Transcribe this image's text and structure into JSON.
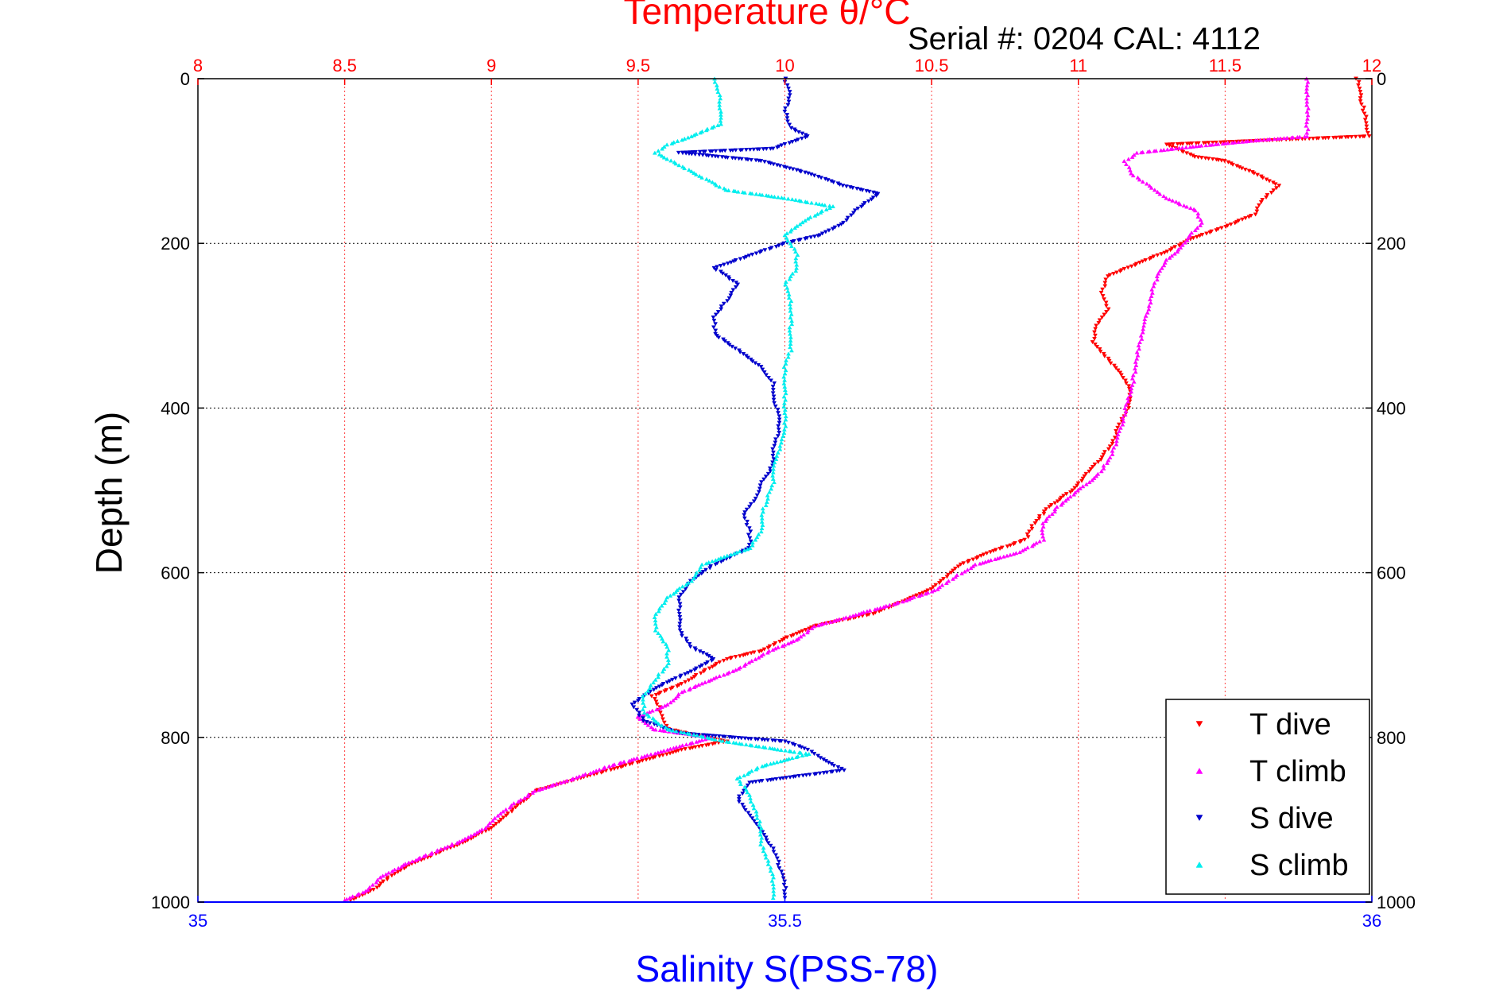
{
  "chart_data": {
    "type": "scatter",
    "title": "Temperature θ/°C",
    "subtitle": "Serial #: 0204  CAL: 4112",
    "xlabel_top": "Temperature θ/°C",
    "xlabel_bottom": "Salinity S(PSS-78)",
    "ylabel": "Depth (m)",
    "temperature_axis": {
      "range": [
        8,
        12
      ],
      "ticks": [
        "8",
        "8.5",
        "9",
        "9.5",
        "10",
        "10.5",
        "11",
        "11.5",
        "12"
      ],
      "color": "#ff0000"
    },
    "salinity_axis": {
      "range": [
        35,
        36
      ],
      "ticks": [
        "35",
        "35.5",
        "36"
      ],
      "color": "#0000ff"
    },
    "depth_axis": {
      "range": [
        0,
        1000
      ],
      "reversed": true,
      "ticks": [
        "0",
        "200",
        "400",
        "600",
        "800",
        "1000"
      ]
    },
    "grid": true,
    "legend_position": "bottom-right",
    "series": [
      {
        "name": "T dive",
        "axis": "temperature",
        "color": "#ff0000",
        "marker": "triangle-down",
        "points": [
          [
            11.95,
            0
          ],
          [
            11.96,
            20
          ],
          [
            11.98,
            50
          ],
          [
            11.99,
            70
          ],
          [
            11.3,
            80
          ],
          [
            11.4,
            95
          ],
          [
            11.5,
            100
          ],
          [
            11.6,
            115
          ],
          [
            11.68,
            130
          ],
          [
            11.62,
            150
          ],
          [
            11.6,
            165
          ],
          [
            11.5,
            180
          ],
          [
            11.38,
            195
          ],
          [
            11.3,
            210
          ],
          [
            11.2,
            225
          ],
          [
            11.1,
            240
          ],
          [
            11.08,
            260
          ],
          [
            11.1,
            280
          ],
          [
            11.06,
            300
          ],
          [
            11.05,
            320
          ],
          [
            11.1,
            340
          ],
          [
            11.15,
            360
          ],
          [
            11.18,
            380
          ],
          [
            11.17,
            400
          ],
          [
            11.14,
            420
          ],
          [
            11.12,
            440
          ],
          [
            11.08,
            460
          ],
          [
            11.03,
            480
          ],
          [
            10.98,
            500
          ],
          [
            10.9,
            520
          ],
          [
            10.85,
            540
          ],
          [
            10.82,
            560
          ],
          [
            10.7,
            575
          ],
          [
            10.6,
            590
          ],
          [
            10.55,
            605
          ],
          [
            10.5,
            620
          ],
          [
            10.4,
            635
          ],
          [
            10.3,
            650
          ],
          [
            10.1,
            665
          ],
          [
            10.0,
            680
          ],
          [
            9.92,
            695
          ],
          [
            9.8,
            705
          ],
          [
            9.72,
            720
          ],
          [
            9.65,
            735
          ],
          [
            9.55,
            750
          ],
          [
            9.58,
            770
          ],
          [
            9.6,
            790
          ],
          [
            9.8,
            805
          ],
          [
            9.65,
            815
          ],
          [
            9.55,
            825
          ],
          [
            9.45,
            835
          ],
          [
            9.35,
            845
          ],
          [
            9.25,
            855
          ],
          [
            9.15,
            865
          ],
          [
            9.1,
            880
          ],
          [
            9.05,
            895
          ],
          [
            9.0,
            910
          ],
          [
            8.92,
            925
          ],
          [
            8.82,
            940
          ],
          [
            8.72,
            955
          ],
          [
            8.65,
            970
          ],
          [
            8.6,
            985
          ],
          [
            8.52,
            998
          ]
        ]
      },
      {
        "name": "T climb",
        "axis": "temperature",
        "color": "#ff00ff",
        "marker": "triangle-up",
        "points": [
          [
            11.78,
            0
          ],
          [
            11.78,
            20
          ],
          [
            11.78,
            40
          ],
          [
            11.78,
            70
          ],
          [
            11.6,
            75
          ],
          [
            11.4,
            82
          ],
          [
            11.2,
            90
          ],
          [
            11.16,
            100
          ],
          [
            11.18,
            115
          ],
          [
            11.24,
            130
          ],
          [
            11.3,
            145
          ],
          [
            11.4,
            160
          ],
          [
            11.42,
            175
          ],
          [
            11.38,
            190
          ],
          [
            11.35,
            205
          ],
          [
            11.3,
            220
          ],
          [
            11.27,
            240
          ],
          [
            11.25,
            260
          ],
          [
            11.24,
            280
          ],
          [
            11.22,
            300
          ],
          [
            11.21,
            320
          ],
          [
            11.2,
            340
          ],
          [
            11.19,
            360
          ],
          [
            11.18,
            380
          ],
          [
            11.16,
            400
          ],
          [
            11.15,
            420
          ],
          [
            11.13,
            440
          ],
          [
            11.11,
            460
          ],
          [
            11.07,
            480
          ],
          [
            11.0,
            500
          ],
          [
            10.93,
            520
          ],
          [
            10.88,
            540
          ],
          [
            10.88,
            560
          ],
          [
            10.8,
            575
          ],
          [
            10.65,
            590
          ],
          [
            10.58,
            605
          ],
          [
            10.52,
            620
          ],
          [
            10.4,
            635
          ],
          [
            10.25,
            650
          ],
          [
            10.1,
            665
          ],
          [
            10.05,
            680
          ],
          [
            9.95,
            695
          ],
          [
            9.85,
            715
          ],
          [
            9.75,
            730
          ],
          [
            9.65,
            745
          ],
          [
            9.6,
            760
          ],
          [
            9.5,
            775
          ],
          [
            9.55,
            790
          ],
          [
            9.75,
            800
          ],
          [
            9.6,
            815
          ],
          [
            9.5,
            825
          ],
          [
            9.4,
            835
          ],
          [
            9.28,
            850
          ],
          [
            9.15,
            865
          ],
          [
            9.08,
            880
          ],
          [
            9.02,
            895
          ],
          [
            8.98,
            910
          ],
          [
            8.9,
            925
          ],
          [
            8.8,
            940
          ],
          [
            8.7,
            955
          ],
          [
            8.62,
            970
          ],
          [
            8.58,
            985
          ],
          [
            8.5,
            998
          ]
        ]
      },
      {
        "name": "S dive",
        "axis": "salinity",
        "color": "#0000cc",
        "marker": "triangle-down",
        "points": [
          [
            35.5,
            0
          ],
          [
            35.505,
            20
          ],
          [
            35.5,
            40
          ],
          [
            35.505,
            60
          ],
          [
            35.52,
            70
          ],
          [
            35.49,
            85
          ],
          [
            35.41,
            90
          ],
          [
            35.48,
            100
          ],
          [
            35.52,
            115
          ],
          [
            35.55,
            130
          ],
          [
            35.58,
            140
          ],
          [
            35.56,
            160
          ],
          [
            35.55,
            175
          ],
          [
            35.53,
            190
          ],
          [
            35.5,
            200
          ],
          [
            35.47,
            215
          ],
          [
            35.44,
            230
          ],
          [
            35.46,
            250
          ],
          [
            35.45,
            270
          ],
          [
            35.44,
            290
          ],
          [
            35.44,
            310
          ],
          [
            35.46,
            330
          ],
          [
            35.48,
            350
          ],
          [
            35.49,
            370
          ],
          [
            35.49,
            390
          ],
          [
            35.495,
            410
          ],
          [
            35.495,
            430
          ],
          [
            35.49,
            450
          ],
          [
            35.49,
            470
          ],
          [
            35.48,
            490
          ],
          [
            35.475,
            510
          ],
          [
            35.465,
            530
          ],
          [
            35.47,
            550
          ],
          [
            35.47,
            570
          ],
          [
            35.44,
            590
          ],
          [
            35.42,
            610
          ],
          [
            35.41,
            630
          ],
          [
            35.41,
            650
          ],
          [
            35.41,
            670
          ],
          [
            35.42,
            690
          ],
          [
            35.44,
            705
          ],
          [
            35.42,
            720
          ],
          [
            35.39,
            740
          ],
          [
            35.37,
            760
          ],
          [
            35.38,
            780
          ],
          [
            35.41,
            795
          ],
          [
            35.5,
            805
          ],
          [
            35.52,
            815
          ],
          [
            35.53,
            825
          ],
          [
            35.55,
            840
          ],
          [
            35.47,
            855
          ],
          [
            35.46,
            875
          ],
          [
            35.47,
            895
          ],
          [
            35.48,
            915
          ],
          [
            35.49,
            935
          ],
          [
            35.495,
            955
          ],
          [
            35.5,
            975
          ],
          [
            35.5,
            995
          ]
        ]
      },
      {
        "name": "S climb",
        "axis": "salinity",
        "color": "#00eeee",
        "marker": "triangle-up",
        "points": [
          [
            35.44,
            0
          ],
          [
            35.445,
            20
          ],
          [
            35.445,
            40
          ],
          [
            35.445,
            55
          ],
          [
            35.42,
            70
          ],
          [
            35.4,
            80
          ],
          [
            35.39,
            90
          ],
          [
            35.41,
            105
          ],
          [
            35.43,
            120
          ],
          [
            35.45,
            135
          ],
          [
            35.5,
            145
          ],
          [
            35.54,
            155
          ],
          [
            35.52,
            170
          ],
          [
            35.5,
            190
          ],
          [
            35.51,
            210
          ],
          [
            35.51,
            230
          ],
          [
            35.5,
            250
          ],
          [
            35.505,
            270
          ],
          [
            35.505,
            290
          ],
          [
            35.505,
            310
          ],
          [
            35.505,
            330
          ],
          [
            35.5,
            350
          ],
          [
            35.5,
            370
          ],
          [
            35.5,
            390
          ],
          [
            35.5,
            410
          ],
          [
            35.5,
            430
          ],
          [
            35.495,
            450
          ],
          [
            35.49,
            470
          ],
          [
            35.49,
            490
          ],
          [
            35.485,
            510
          ],
          [
            35.48,
            530
          ],
          [
            35.48,
            550
          ],
          [
            35.47,
            570
          ],
          [
            35.43,
            590
          ],
          [
            35.42,
            610
          ],
          [
            35.4,
            630
          ],
          [
            35.39,
            650
          ],
          [
            35.39,
            670
          ],
          [
            35.4,
            690
          ],
          [
            35.4,
            710
          ],
          [
            35.39,
            730
          ],
          [
            35.38,
            750
          ],
          [
            35.38,
            770
          ],
          [
            35.4,
            790
          ],
          [
            35.45,
            805
          ],
          [
            35.52,
            820
          ],
          [
            35.48,
            835
          ],
          [
            35.46,
            850
          ],
          [
            35.47,
            870
          ],
          [
            35.475,
            890
          ],
          [
            35.48,
            910
          ],
          [
            35.48,
            930
          ],
          [
            35.485,
            950
          ],
          [
            35.49,
            970
          ],
          [
            35.49,
            995
          ]
        ]
      }
    ]
  }
}
